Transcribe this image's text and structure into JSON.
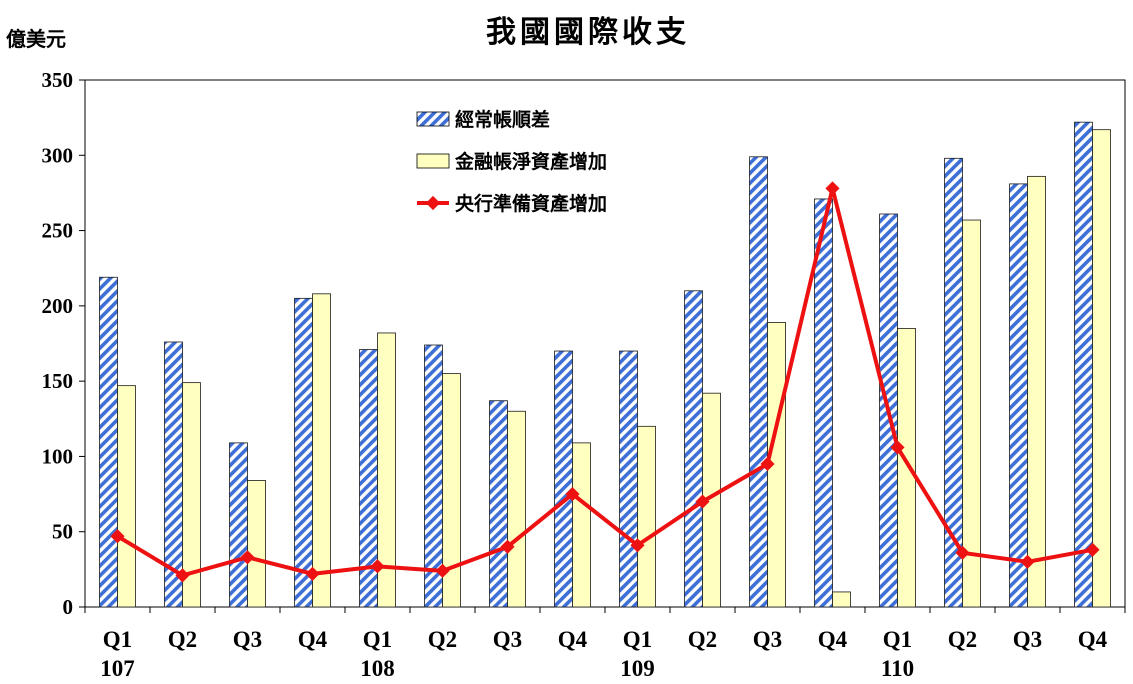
{
  "chart_data": {
    "type": "bar",
    "title": "我國國際收支",
    "ylabel": "億美元",
    "ylim": [
      0,
      350
    ],
    "yticks": [
      "0",
      "50",
      "100",
      "150",
      "200",
      "250",
      "300",
      "350"
    ],
    "categories": [
      "Q1",
      "Q2",
      "Q3",
      "Q4",
      "Q1",
      "Q2",
      "Q3",
      "Q4",
      "Q1",
      "Q2",
      "Q3",
      "Q4",
      "Q1",
      "Q2",
      "Q3",
      "Q4"
    ],
    "year_labels": [
      {
        "label": "107",
        "category_index": 0
      },
      {
        "label": "108",
        "category_index": 4
      },
      {
        "label": "109",
        "category_index": 8
      },
      {
        "label": "110",
        "category_index": 12
      }
    ],
    "legend_position": "top-center",
    "grid": false,
    "series": [
      {
        "name": "經常帳順差",
        "kind": "bar",
        "pattern": "diagonal-hatch",
        "color": "#3d6fd6",
        "values": [
          219,
          176,
          109,
          205,
          171,
          174,
          137,
          170,
          170,
          210,
          299,
          271,
          261,
          298,
          281,
          322
        ]
      },
      {
        "name": "金融帳淨資產增加",
        "kind": "bar",
        "color": "#ffffbf",
        "values": [
          147,
          149,
          84,
          208,
          182,
          155,
          130,
          109,
          120,
          142,
          189,
          10,
          185,
          257,
          286,
          317
        ]
      },
      {
        "name": "央行準備資產增加",
        "kind": "line",
        "color": "#ee1111",
        "values": [
          47,
          21,
          33,
          22,
          27,
          24,
          40,
          75,
          41,
          70,
          95,
          278,
          106,
          36,
          30,
          38
        ]
      }
    ]
  }
}
